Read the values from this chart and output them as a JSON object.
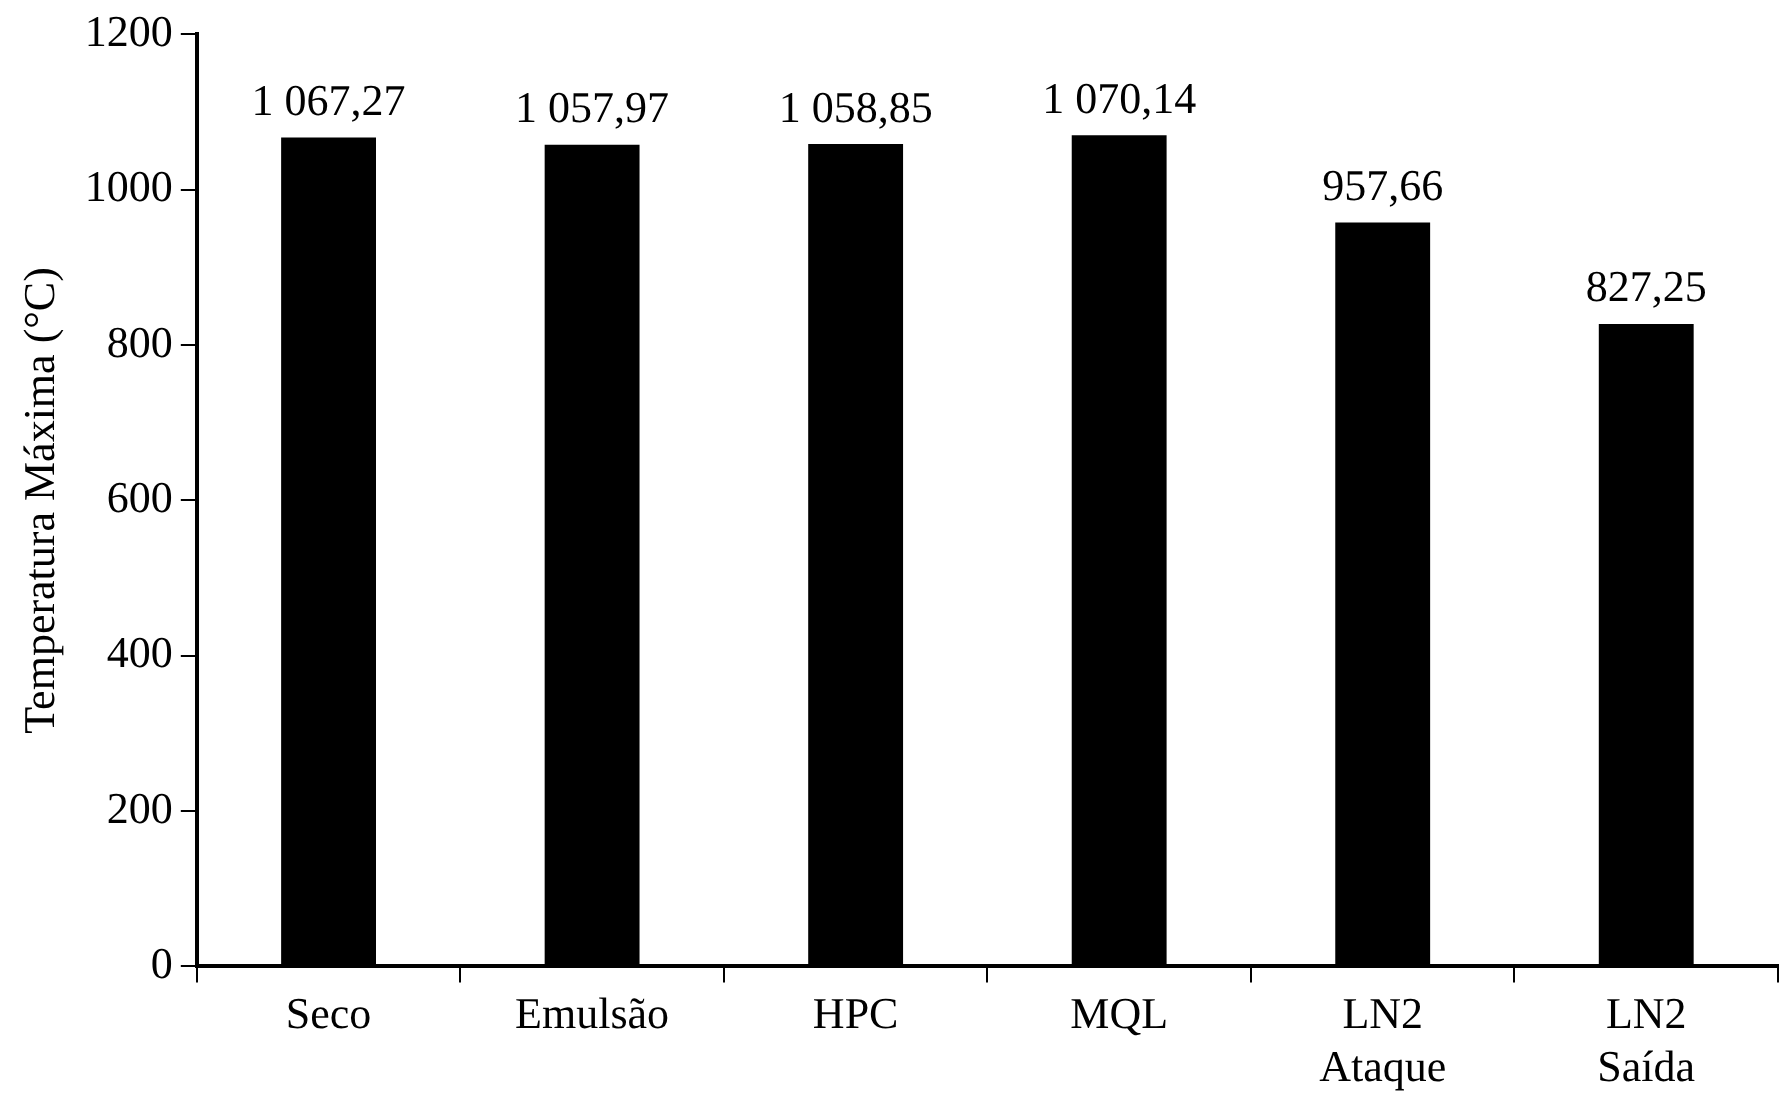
{
  "chart_data": {
    "type": "bar",
    "ylabel": "Temperatura Máxima (°C)",
    "categories": [
      "Seco",
      "Emulsão",
      "HPC",
      "MQL",
      "LN2\nAtaque",
      "LN2\nSaída"
    ],
    "values": [
      1067.27,
      1057.97,
      1058.85,
      1070.14,
      957.66,
      827.25
    ],
    "value_labels": [
      "1 067,27",
      "1 057,97",
      "1 058,85",
      "1 070,14",
      "957,66",
      "827,25"
    ],
    "color": "#000000",
    "ylim": [
      0,
      1200
    ],
    "yticks": [
      0,
      200,
      400,
      600,
      800,
      1000,
      1200
    ],
    "grid": false
  }
}
